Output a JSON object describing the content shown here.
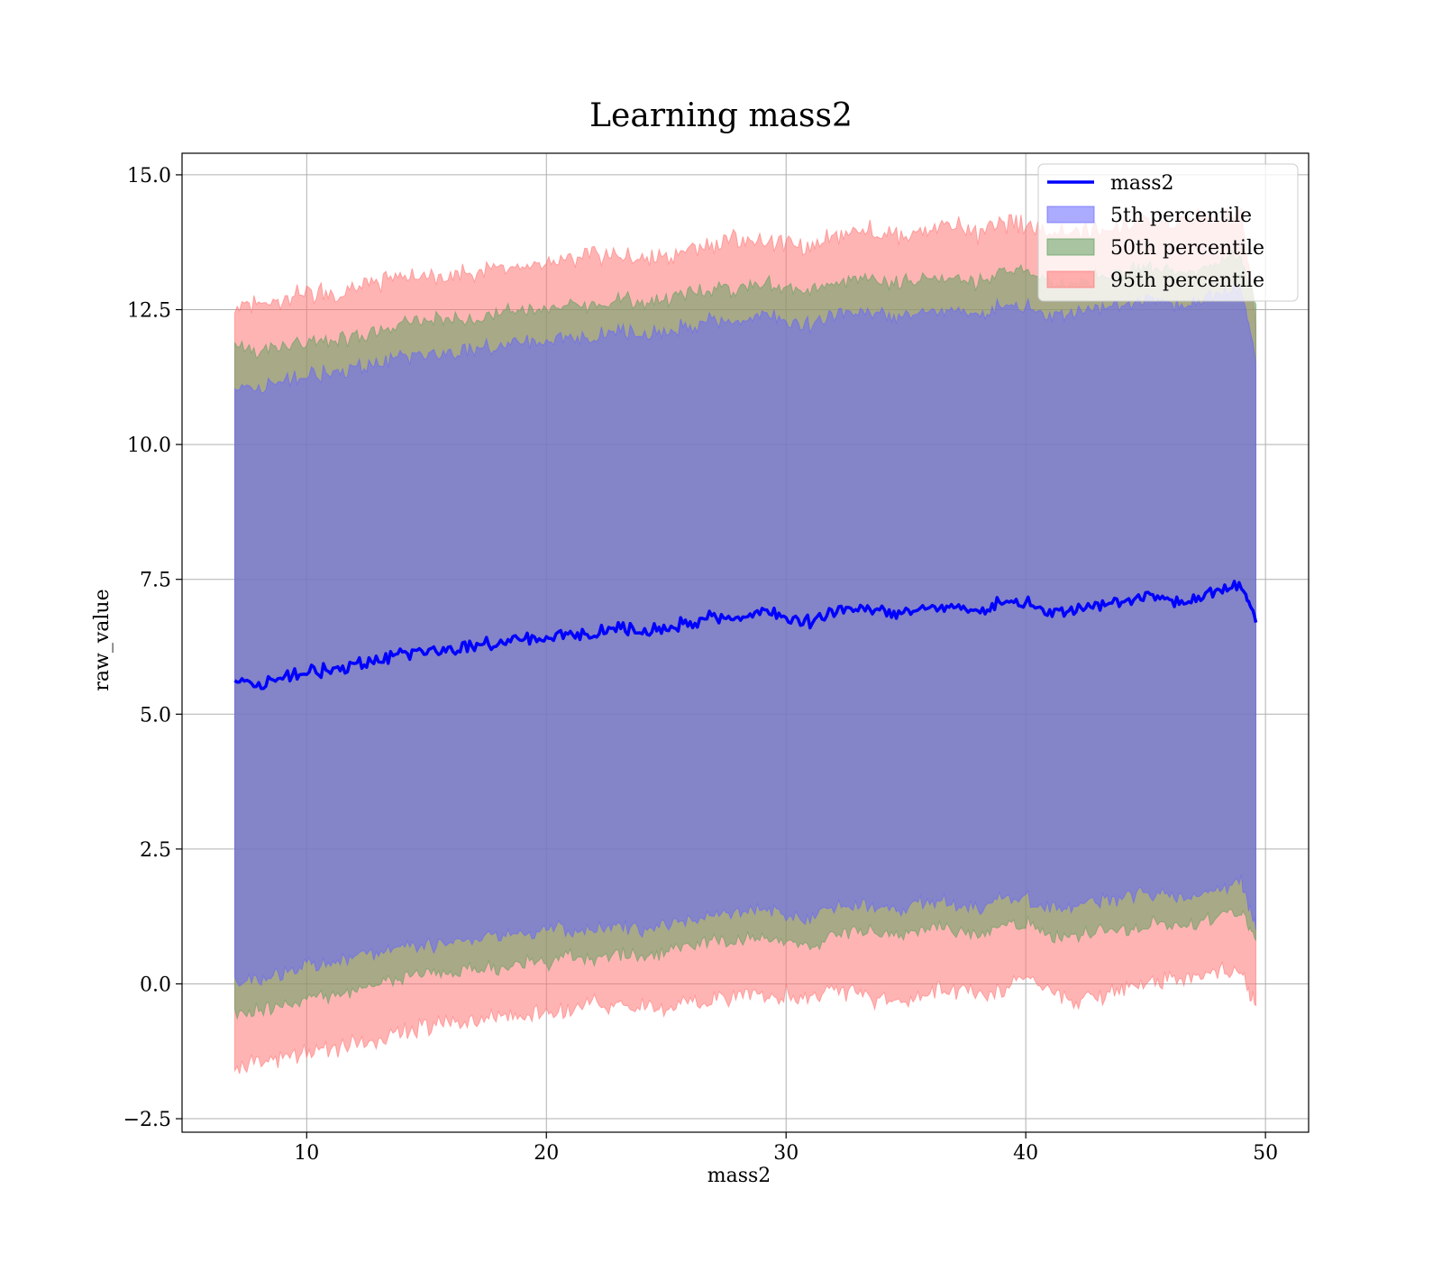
{
  "chart_data": {
    "type": "area",
    "title": "Learning mass2",
    "xlabel": "mass2",
    "ylabel": "raw_value",
    "xlim": [
      4.8,
      51.8
    ],
    "ylim": [
      -2.75,
      15.4
    ],
    "x_ticks": [
      {
        "value": 10,
        "label": "10"
      },
      {
        "value": 20,
        "label": "20"
      },
      {
        "value": 30,
        "label": "30"
      },
      {
        "value": 40,
        "label": "40"
      },
      {
        "value": 50,
        "label": "50"
      }
    ],
    "y_ticks": [
      {
        "value": -2.5,
        "label": "−2.5"
      },
      {
        "value": 0,
        "label": "0.0"
      },
      {
        "value": 2.5,
        "label": "2.5"
      },
      {
        "value": 5,
        "label": "5.0"
      },
      {
        "value": 7.5,
        "label": "7.5"
      },
      {
        "value": 10,
        "label": "10.0"
      },
      {
        "value": 12.5,
        "label": "12.5"
      },
      {
        "value": 15,
        "label": "15.0"
      }
    ],
    "grid": true,
    "legend_position": "top-right",
    "x": [
      7.0,
      8.0,
      9.0,
      10.0,
      11.0,
      12.0,
      13.0,
      14.0,
      15.0,
      16.0,
      17.0,
      18.0,
      19.0,
      20.0,
      21.0,
      22.0,
      23.0,
      24.0,
      25.0,
      26.0,
      27.0,
      28.0,
      29.0,
      30.0,
      31.0,
      32.0,
      33.0,
      34.0,
      35.0,
      36.0,
      37.0,
      38.0,
      39.0,
      40.0,
      41.0,
      42.0,
      43.0,
      44.0,
      45.0,
      46.0,
      47.0,
      48.0,
      49.0,
      49.6
    ],
    "line": {
      "name": "mass2",
      "color": "#0000ff",
      "y": [
        5.6,
        5.5,
        5.7,
        5.8,
        5.8,
        5.9,
        6.0,
        6.1,
        6.2,
        6.2,
        6.3,
        6.3,
        6.4,
        6.4,
        6.5,
        6.5,
        6.6,
        6.5,
        6.6,
        6.7,
        6.8,
        6.8,
        6.9,
        6.8,
        6.7,
        6.9,
        7.0,
        6.9,
        6.9,
        7.0,
        7.0,
        6.9,
        7.1,
        7.1,
        6.9,
        6.9,
        7.0,
        7.1,
        7.2,
        7.1,
        7.1,
        7.3,
        7.4,
        6.7
      ]
    },
    "series": [
      {
        "name": "95th percentile",
        "color": "#ff7777",
        "lower": [
          -1.5,
          -1.5,
          -1.4,
          -1.3,
          -1.2,
          -1.1,
          -1.0,
          -0.9,
          -0.8,
          -0.7,
          -0.7,
          -0.6,
          -0.6,
          -0.5,
          -0.5,
          -0.4,
          -0.4,
          -0.4,
          -0.5,
          -0.3,
          -0.3,
          -0.2,
          -0.2,
          -0.2,
          -0.3,
          -0.1,
          -0.2,
          -0.3,
          -0.3,
          -0.2,
          -0.1,
          -0.2,
          -0.1,
          0.1,
          -0.1,
          -0.3,
          -0.2,
          -0.1,
          0.0,
          0.1,
          0.1,
          0.2,
          0.2,
          -0.4
        ],
        "upper": [
          12.5,
          12.6,
          12.7,
          12.8,
          12.8,
          12.9,
          13.0,
          13.1,
          13.1,
          13.1,
          13.2,
          13.3,
          13.3,
          13.3,
          13.4,
          13.5,
          13.5,
          13.4,
          13.5,
          13.6,
          13.7,
          13.8,
          13.8,
          13.7,
          13.7,
          13.9,
          14.0,
          13.9,
          13.9,
          14.0,
          14.1,
          13.9,
          14.1,
          14.1,
          13.9,
          13.9,
          14.0,
          14.0,
          14.1,
          14.1,
          14.2,
          14.2,
          14.3,
          12.2
        ]
      },
      {
        "name": "50th percentile",
        "color": "#60a060",
        "lower": [
          -0.6,
          -0.5,
          -0.4,
          -0.3,
          -0.2,
          -0.1,
          0.0,
          0.1,
          0.2,
          0.2,
          0.3,
          0.3,
          0.4,
          0.4,
          0.5,
          0.5,
          0.6,
          0.5,
          0.6,
          0.7,
          0.8,
          0.8,
          0.9,
          0.8,
          0.7,
          0.9,
          1.0,
          0.9,
          0.9,
          1.0,
          1.0,
          0.9,
          1.1,
          1.1,
          0.9,
          0.9,
          1.0,
          1.0,
          1.1,
          1.1,
          1.1,
          1.3,
          1.4,
          0.8
        ],
        "upper": [
          11.8,
          11.7,
          11.8,
          11.9,
          11.9,
          12.0,
          12.1,
          12.2,
          12.3,
          12.3,
          12.4,
          12.4,
          12.5,
          12.5,
          12.6,
          12.6,
          12.7,
          12.6,
          12.7,
          12.8,
          12.9,
          12.9,
          13.0,
          12.9,
          12.8,
          13.0,
          13.1,
          13.0,
          13.0,
          13.1,
          13.1,
          13.0,
          13.2,
          13.2,
          13.0,
          13.0,
          13.1,
          13.2,
          13.3,
          13.2,
          13.2,
          13.4,
          13.5,
          12.6
        ]
      },
      {
        "name": "5th percentile",
        "color": "#6666ff",
        "lower": [
          0.0,
          0.1,
          0.2,
          0.3,
          0.4,
          0.5,
          0.6,
          0.7,
          0.7,
          0.8,
          0.8,
          0.9,
          0.9,
          1.0,
          1.0,
          1.0,
          1.1,
          1.0,
          1.1,
          1.2,
          1.3,
          1.3,
          1.4,
          1.3,
          1.2,
          1.4,
          1.5,
          1.4,
          1.4,
          1.5,
          1.5,
          1.4,
          1.6,
          1.6,
          1.4,
          1.4,
          1.5,
          1.6,
          1.7,
          1.6,
          1.6,
          1.8,
          1.9,
          1.0
        ],
        "upper": [
          11.0,
          11.0,
          11.2,
          11.3,
          11.3,
          11.4,
          11.5,
          11.6,
          11.7,
          11.7,
          11.8,
          11.8,
          11.9,
          11.9,
          12.0,
          12.0,
          12.1,
          12.0,
          12.1,
          12.2,
          12.3,
          12.3,
          12.4,
          12.3,
          12.2,
          12.4,
          12.5,
          12.4,
          12.4,
          12.5,
          12.5,
          12.4,
          12.6,
          12.6,
          12.4,
          12.4,
          12.5,
          12.6,
          12.7,
          12.6,
          12.6,
          12.8,
          12.9,
          11.5
        ]
      }
    ],
    "legend": [
      {
        "label": "mass2",
        "kind": "line",
        "color": "#0000ff"
      },
      {
        "label": "5th percentile",
        "kind": "patch",
        "color": "#6666ff"
      },
      {
        "label": "50th percentile",
        "kind": "patch",
        "color": "#60a060"
      },
      {
        "label": "95th percentile",
        "kind": "patch",
        "color": "#ff7777"
      }
    ]
  }
}
